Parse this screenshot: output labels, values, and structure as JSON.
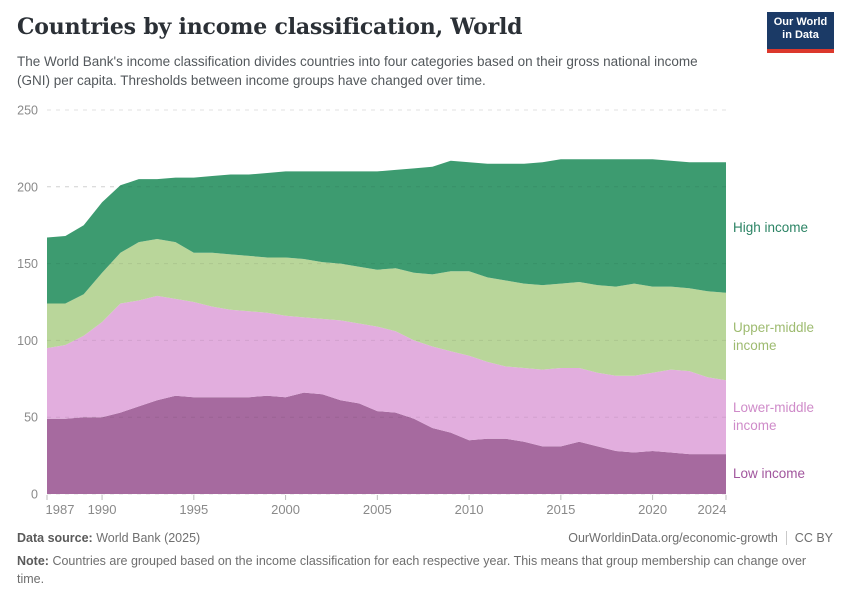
{
  "header": {
    "title": "Countries by income classification, World",
    "subtitle": "The World Bank's income classification divides countries into four categories based on their gross national income (GNI) per capita. Thresholds between income groups have changed over time.",
    "logo": {
      "line1": "Our World",
      "line2": "in Data",
      "bg_color": "#1b3a66",
      "accent_color": "#dc382c"
    }
  },
  "chart_data": {
    "type": "area",
    "stacked": true,
    "title": "Countries by income classification, World",
    "xlabel": "",
    "ylabel": "",
    "ylim": [
      0,
      250
    ],
    "grid": "dashed-horizontal",
    "legend_position": "right",
    "x": [
      1987,
      1988,
      1989,
      1990,
      1991,
      1992,
      1993,
      1994,
      1995,
      1996,
      1997,
      1998,
      1999,
      2000,
      2001,
      2002,
      2003,
      2004,
      2005,
      2006,
      2007,
      2008,
      2009,
      2010,
      2011,
      2012,
      2013,
      2014,
      2015,
      2016,
      2017,
      2018,
      2019,
      2020,
      2021,
      2022,
      2023,
      2024
    ],
    "xticks": [
      1987,
      1990,
      1995,
      2000,
      2005,
      2010,
      2015,
      2020,
      2024
    ],
    "yticks": [
      0,
      50,
      100,
      150,
      200,
      250
    ],
    "series": [
      {
        "name": "Low income",
        "color": "#a66a9f",
        "label_color": "#a1569d",
        "values": [
          49,
          49,
          50,
          50,
          53,
          57,
          61,
          64,
          63,
          63,
          63,
          63,
          64,
          63,
          66,
          65,
          61,
          59,
          54,
          53,
          49,
          43,
          40,
          35,
          36,
          36,
          34,
          31,
          31,
          34,
          31,
          28,
          27,
          28,
          27,
          26,
          26,
          26
        ]
      },
      {
        "name": "Lower-middle income",
        "color": "#e2aede",
        "label_color": "#cf8bc9",
        "values": [
          46,
          48,
          53,
          62,
          71,
          69,
          68,
          63,
          62,
          59,
          57,
          56,
          54,
          53,
          49,
          49,
          52,
          52,
          55,
          53,
          51,
          53,
          53,
          55,
          50,
          47,
          48,
          50,
          51,
          48,
          48,
          49,
          50,
          51,
          54,
          54,
          50,
          48
        ]
      },
      {
        "name": "Upper-middle income",
        "color": "#b9d69a",
        "label_color": "#9ebb70",
        "values": [
          29,
          27,
          27,
          32,
          33,
          38,
          37,
          37,
          32,
          35,
          36,
          36,
          36,
          38,
          38,
          37,
          37,
          37,
          37,
          41,
          44,
          47,
          52,
          55,
          55,
          56,
          55,
          55,
          55,
          56,
          57,
          58,
          60,
          56,
          54,
          54,
          56,
          57
        ]
      },
      {
        "name": "High income",
        "color": "#3d9b70",
        "label_color": "#2c8465",
        "values": [
          43,
          44,
          45,
          46,
          44,
          41,
          39,
          42,
          49,
          50,
          52,
          53,
          55,
          56,
          57,
          59,
          60,
          62,
          64,
          64,
          68,
          70,
          72,
          71,
          74,
          76,
          78,
          80,
          81,
          80,
          82,
          83,
          81,
          83,
          82,
          82,
          84,
          85
        ]
      }
    ]
  },
  "footer": {
    "source_label": "Data source:",
    "source_value": "World Bank (2025)",
    "link": "OurWorldinData.org/economic-growth",
    "license": "CC BY",
    "note_label": "Note:",
    "note_text": "Countries are grouped based on the income classification for each respective year. This means that group membership can change over time."
  }
}
